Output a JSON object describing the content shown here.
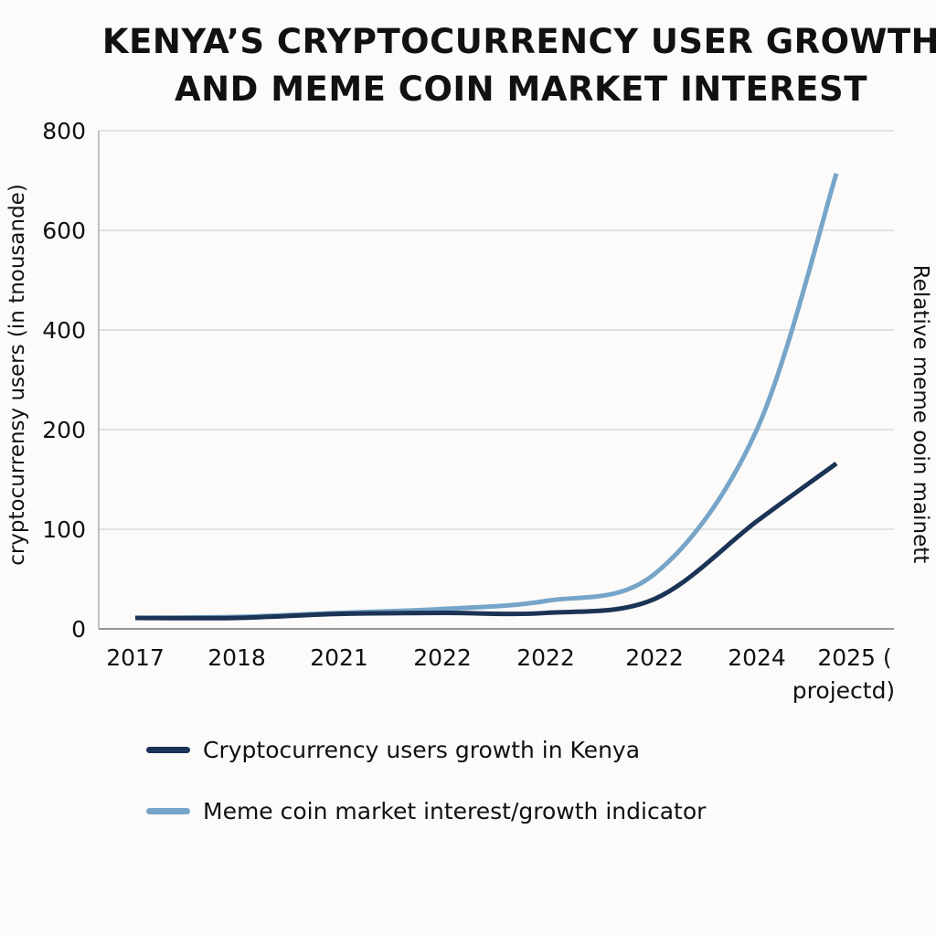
{
  "chart_data": {
    "type": "line",
    "title_lines": [
      "KENYA’S CRYPTOCURRENCY USER GROWTH",
      "AND MEME COIN MARKET INTEREST"
    ],
    "ylabel": "cryptocurrensy users (in tnousande)",
    "ylabel_right": "Relative meme ooin mainett",
    "categories": [
      "2017",
      "2018",
      "2021",
      "2022",
      "2022",
      "2022",
      "2024",
      "2025 ( projectd)"
    ],
    "category_label_lines": [
      [
        "2017"
      ],
      [
        "2018"
      ],
      [
        "2021"
      ],
      [
        "2022"
      ],
      [
        "2022"
      ],
      [
        "2022"
      ],
      [
        "2024"
      ],
      [
        "2025 (",
        "projectd)"
      ]
    ],
    "yticks": [
      0,
      100,
      200,
      400,
      600,
      800
    ],
    "ylim": [
      0,
      800
    ],
    "grid": true,
    "legend_placement": "bottom",
    "series": [
      {
        "name": "Cryptocurrency users growth in Kenya",
        "color": "#1b3355",
        "values": [
          11,
          11,
          15,
          16,
          16,
          30,
          108,
          166
        ]
      },
      {
        "name": "Meme coin market interest/growth indicator",
        "color": "#76a5c9",
        "values": [
          11,
          12,
          16,
          20,
          28,
          55,
          200,
          714
        ]
      }
    ]
  }
}
